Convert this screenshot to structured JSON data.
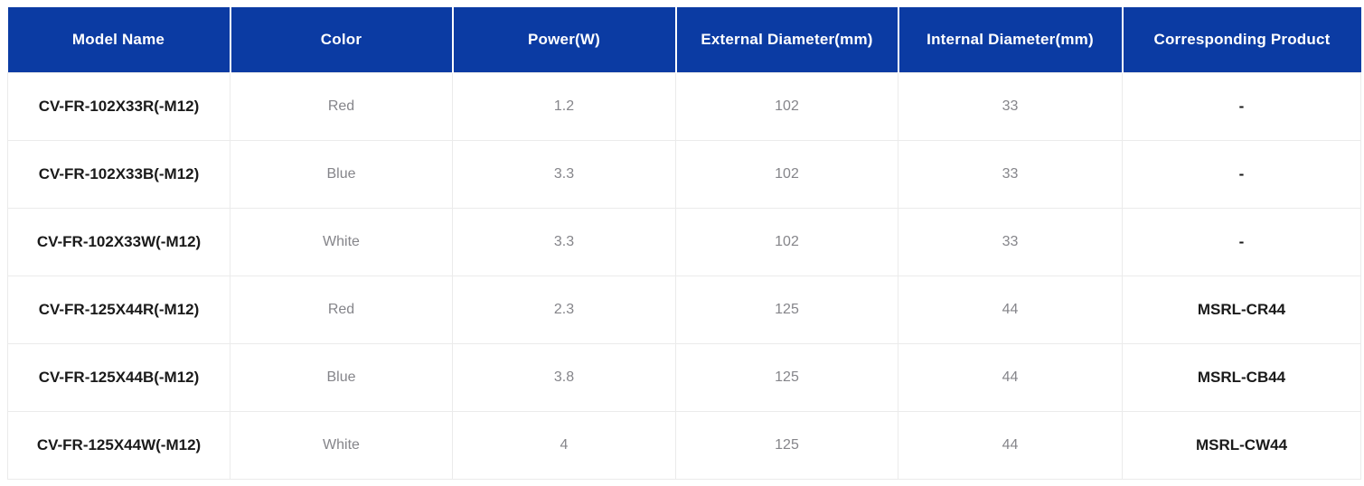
{
  "table": {
    "columns": [
      {
        "key": "model-name",
        "label": "Model Name"
      },
      {
        "key": "color",
        "label": "Color"
      },
      {
        "key": "power",
        "label": "Power(W)"
      },
      {
        "key": "external-diameter",
        "label": "External Diameter(mm)"
      },
      {
        "key": "internal-diameter",
        "label": "Internal Diameter(mm)"
      },
      {
        "key": "corresponding-product",
        "label": "Corresponding Product"
      }
    ],
    "rows": [
      [
        "CV-FR-102X33R(-M12)",
        "Red",
        "1.2",
        "102",
        "33",
        "-"
      ],
      [
        "CV-FR-102X33B(-M12)",
        "Blue",
        "3.3",
        "102",
        "33",
        "-"
      ],
      [
        "CV-FR-102X33W(-M12)",
        "White",
        "3.3",
        "102",
        "33",
        "-"
      ],
      [
        "CV-FR-125X44R(-M12)",
        "Red",
        "2.3",
        "125",
        "44",
        "MSRL-CR44"
      ],
      [
        "CV-FR-125X44B(-M12)",
        "Blue",
        "3.8",
        "125",
        "44",
        "MSRL-CB44"
      ],
      [
        "CV-FR-125X44W(-M12)",
        "White",
        "4",
        "125",
        "44",
        "MSRL-CW44"
      ]
    ]
  },
  "colors": {
    "header_bg": "#0b3ba3",
    "header_text": "#ffffff",
    "border": "#ebebeb",
    "dark_text": "#1a1a1a",
    "gray_text": "#85858a"
  }
}
